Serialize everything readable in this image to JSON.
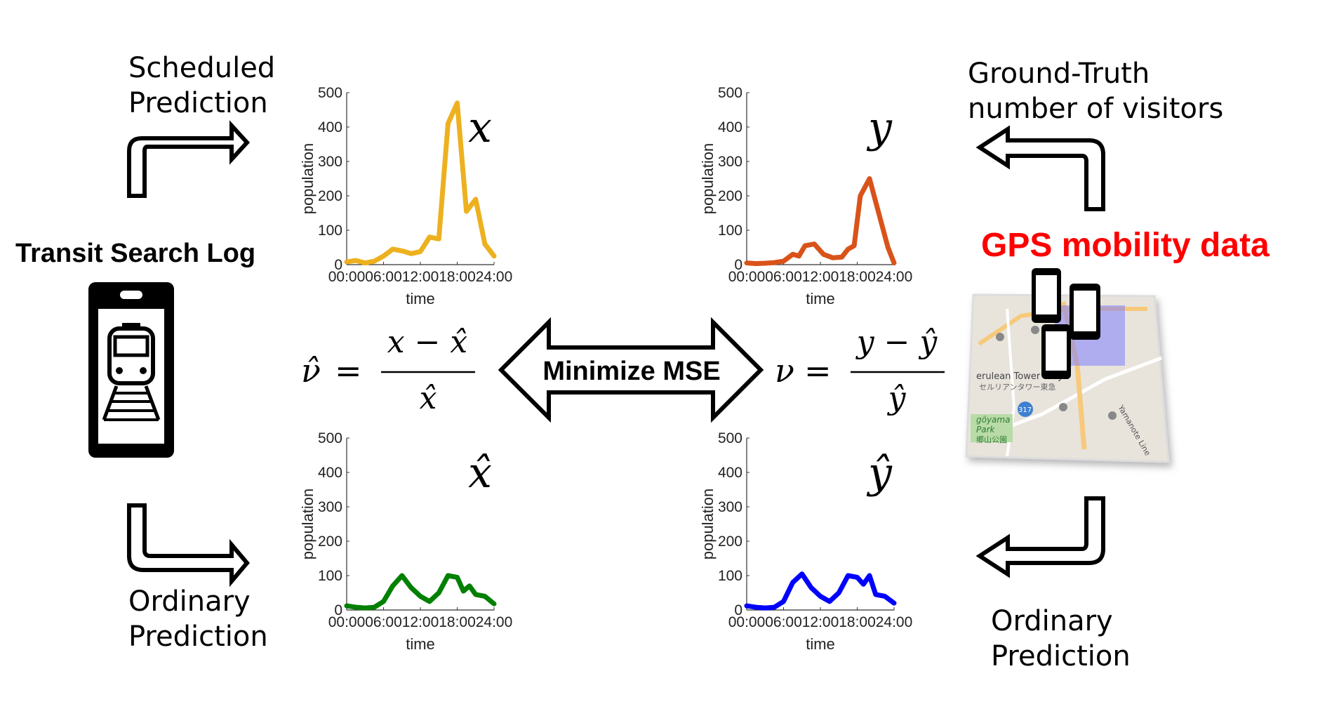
{
  "labels": {
    "scheduled_line1": "Scheduled",
    "scheduled_line2": "Prediction",
    "ordinary_left_line1": "Ordinary",
    "ordinary_left_line2": "Prediction",
    "ground_truth_line1": "Ground-Truth",
    "ground_truth_line2": "number of visitors",
    "ordinary_right_line1": "Ordinary",
    "ordinary_right_line2": "Prediction",
    "transit_search_log": "Transit Search Log",
    "gps_mobility_data": "GPS mobility data",
    "minimize_mse": "Minimize MSE"
  },
  "equations": {
    "left_lhs": "ν̂",
    "left_num": "x − x̂",
    "left_den": "x̂",
    "right_lhs": "ν",
    "right_num": "y − ŷ",
    "right_den": "ŷ",
    "equals": "="
  },
  "map_text": {
    "line1": "erulean Tower Tokyu",
    "line2": "セルリアンタワー東急",
    "road": "317",
    "park1": "göyama",
    "park2": "Park",
    "park3": "郷山公園",
    "line_name": "Yamanote Line"
  },
  "colors": {
    "x": "#EDB120",
    "y": "#D95319",
    "xhat": "#008000",
    "yhat": "#0000FF",
    "gps_title": "#FF0000"
  },
  "chart_data": [
    {
      "type": "line",
      "series_symbol": "x",
      "x": [
        0,
        1.5,
        3,
        4.5,
        6,
        7.5,
        9,
        10.5,
        12,
        13.5,
        15,
        16.5,
        18,
        19.5,
        21,
        22.5,
        24
      ],
      "y": [
        8,
        12,
        5,
        10,
        25,
        45,
        40,
        32,
        38,
        80,
        75,
        410,
        470,
        155,
        190,
        60,
        25
      ],
      "xlabel": "time",
      "ylabel": "population",
      "xticks": [
        "00:00",
        "06:00",
        "12:00",
        "18:00",
        "24:00"
      ],
      "yticks": [
        0,
        100,
        200,
        300,
        400,
        500
      ],
      "ylim": [
        0,
        500
      ],
      "xlim": [
        0,
        24
      ]
    },
    {
      "type": "line",
      "series_symbol": "y",
      "x": [
        0,
        1.5,
        3,
        4.5,
        6,
        7.5,
        8.5,
        9.5,
        11,
        12.5,
        14,
        15.5,
        16.5,
        17.5,
        18.5,
        20,
        21.5,
        23,
        24
      ],
      "y": [
        5,
        3,
        4,
        6,
        10,
        30,
        25,
        55,
        60,
        30,
        20,
        22,
        45,
        55,
        200,
        250,
        150,
        50,
        5
      ],
      "xlabel": "time",
      "ylabel": "population",
      "xticks": [
        "00:00",
        "06:00",
        "12:00",
        "18:00",
        "24:00"
      ],
      "yticks": [
        0,
        100,
        200,
        300,
        400,
        500
      ],
      "ylim": [
        0,
        500
      ],
      "xlim": [
        0,
        24
      ]
    },
    {
      "type": "line",
      "series_symbol": "x̂",
      "x": [
        0,
        1.5,
        3,
        4.5,
        6,
        7.5,
        9,
        10.5,
        12,
        13.5,
        15,
        16.5,
        18,
        19,
        20,
        21,
        22.5,
        24
      ],
      "y": [
        12,
        8,
        6,
        8,
        25,
        70,
        100,
        65,
        40,
        25,
        50,
        100,
        95,
        55,
        70,
        45,
        40,
        18
      ],
      "xlabel": "time",
      "ylabel": "population",
      "xticks": [
        "00:00",
        "06:00",
        "12:00",
        "18:00",
        "24:00"
      ],
      "yticks": [
        0,
        100,
        200,
        300,
        400,
        500
      ],
      "ylim": [
        0,
        500
      ],
      "xlim": [
        0,
        24
      ]
    },
    {
      "type": "line",
      "series_symbol": "ŷ",
      "x": [
        0,
        1.5,
        3,
        4.5,
        6,
        7.5,
        9,
        10.5,
        12,
        13.5,
        15,
        16.5,
        18,
        19,
        20,
        21,
        22.5,
        24
      ],
      "y": [
        12,
        8,
        6,
        8,
        25,
        80,
        105,
        65,
        40,
        25,
        50,
        100,
        95,
        75,
        100,
        45,
        40,
        20
      ],
      "xlabel": "time",
      "ylabel": "population",
      "xticks": [
        "00:00",
        "06:00",
        "12:00",
        "18:00",
        "24:00"
      ],
      "yticks": [
        0,
        100,
        200,
        300,
        400,
        500
      ],
      "ylim": [
        0,
        500
      ],
      "xlim": [
        0,
        24
      ]
    }
  ]
}
